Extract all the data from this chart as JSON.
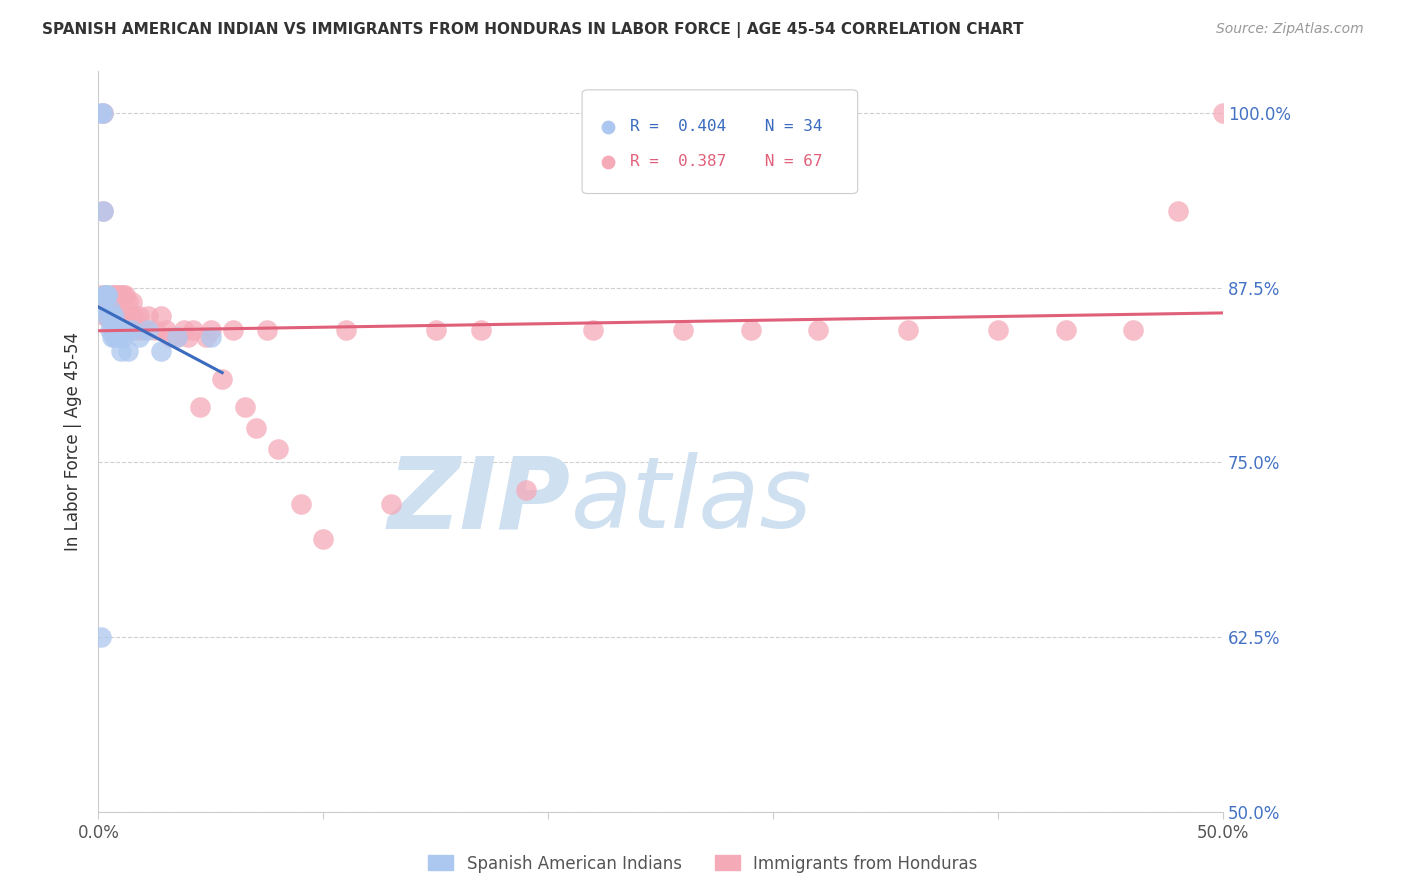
{
  "title": "SPANISH AMERICAN INDIAN VS IMMIGRANTS FROM HONDURAS IN LABOR FORCE | AGE 45-54 CORRELATION CHART",
  "source": "Source: ZipAtlas.com",
  "ylabel": "In Labor Force | Age 45-54",
  "legend_blue_r": "R = 0.404",
  "legend_blue_n": "N = 34",
  "legend_pink_r": "R = 0.387",
  "legend_pink_n": "N = 67",
  "blue_fill_color": "#adc8f0",
  "blue_edge_color": "#adc8f0",
  "pink_fill_color": "#f5aab8",
  "pink_edge_color": "#f5aab8",
  "blue_line_color": "#3a6bbf",
  "pink_line_color": "#e0607a",
  "legend_blue_text_color": "#3a6bbf",
  "legend_pink_text_color": "#e0607a",
  "right_tick_color": "#4472c4",
  "watermark_color": "#cfe0f0",
  "background_color": "#ffffff",
  "blue_scatter_x": [
    0.001,
    0.002,
    0.002,
    0.003,
    0.003,
    0.003,
    0.004,
    0.004,
    0.004,
    0.005,
    0.005,
    0.005,
    0.006,
    0.006,
    0.006,
    0.007,
    0.007,
    0.007,
    0.008,
    0.008,
    0.009,
    0.009,
    0.01,
    0.01,
    0.011,
    0.012,
    0.013,
    0.015,
    0.018,
    0.022,
    0.028,
    0.035,
    0.05,
    0.001
  ],
  "blue_scatter_y": [
    1.0,
    1.0,
    0.93,
    0.87,
    0.87,
    0.86,
    0.87,
    0.87,
    0.855,
    0.86,
    0.855,
    0.845,
    0.855,
    0.85,
    0.84,
    0.855,
    0.845,
    0.84,
    0.845,
    0.84,
    0.845,
    0.84,
    0.845,
    0.83,
    0.84,
    0.845,
    0.83,
    0.845,
    0.84,
    0.845,
    0.83,
    0.84,
    0.84,
    0.625
  ],
  "pink_scatter_x": [
    0.001,
    0.002,
    0.002,
    0.003,
    0.003,
    0.004,
    0.004,
    0.005,
    0.005,
    0.006,
    0.006,
    0.006,
    0.007,
    0.007,
    0.008,
    0.008,
    0.008,
    0.009,
    0.009,
    0.01,
    0.01,
    0.011,
    0.011,
    0.012,
    0.012,
    0.013,
    0.014,
    0.015,
    0.016,
    0.017,
    0.018,
    0.02,
    0.022,
    0.025,
    0.028,
    0.03,
    0.032,
    0.035,
    0.038,
    0.04,
    0.042,
    0.045,
    0.048,
    0.05,
    0.055,
    0.06,
    0.065,
    0.07,
    0.075,
    0.08,
    0.09,
    0.1,
    0.11,
    0.13,
    0.15,
    0.17,
    0.19,
    0.22,
    0.26,
    0.29,
    0.32,
    0.36,
    0.4,
    0.43,
    0.46,
    0.48,
    0.5
  ],
  "pink_scatter_y": [
    0.87,
    1.0,
    0.93,
    0.87,
    0.855,
    0.865,
    0.855,
    0.865,
    0.855,
    0.87,
    0.855,
    0.845,
    0.87,
    0.855,
    0.87,
    0.855,
    0.845,
    0.87,
    0.855,
    0.87,
    0.855,
    0.87,
    0.855,
    0.87,
    0.855,
    0.865,
    0.855,
    0.865,
    0.855,
    0.845,
    0.855,
    0.845,
    0.855,
    0.845,
    0.855,
    0.845,
    0.84,
    0.84,
    0.845,
    0.84,
    0.845,
    0.79,
    0.84,
    0.845,
    0.81,
    0.845,
    0.79,
    0.775,
    0.845,
    0.76,
    0.72,
    0.695,
    0.845,
    0.72,
    0.845,
    0.845,
    0.73,
    0.845,
    0.845,
    0.845,
    0.845,
    0.845,
    0.845,
    0.845,
    0.845,
    0.93,
    1.0
  ],
  "xlim": [
    0.0,
    0.5
  ],
  "ylim": [
    0.5,
    1.03
  ],
  "y_ticks": [
    0.5,
    0.625,
    0.75,
    0.875,
    1.0
  ],
  "y_tick_labels": [
    "50.0%",
    "62.5%",
    "75.0%",
    "87.5%",
    "100.0%"
  ],
  "x_ticks": [
    0.0,
    0.1,
    0.2,
    0.3,
    0.4,
    0.5
  ],
  "x_tick_labels": [
    "0.0%",
    "",
    "",
    "",
    "",
    "50.0%"
  ]
}
